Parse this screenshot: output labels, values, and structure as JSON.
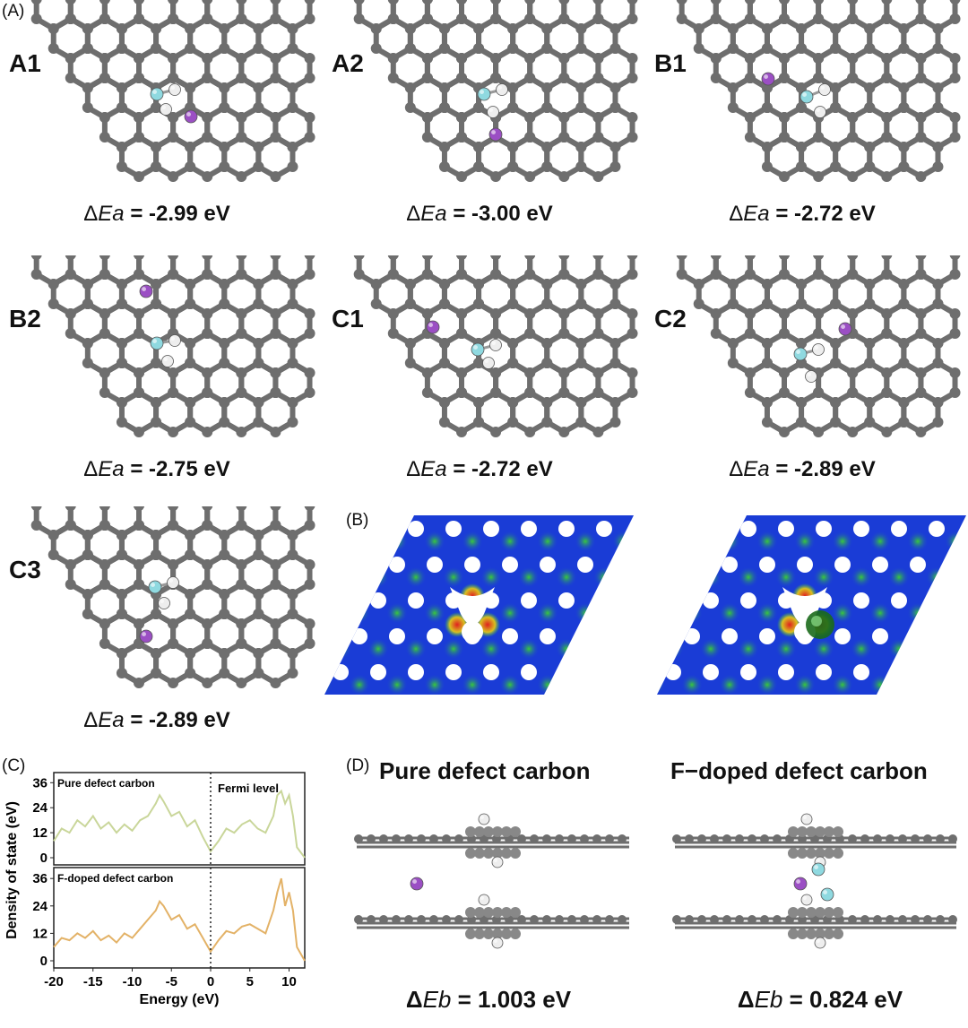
{
  "panel_letters": {
    "a": "(A)",
    "b": "(B)",
    "c": "(C)",
    "d": "(D)"
  },
  "structures": [
    {
      "label": "A1",
      "delta": "Δ",
      "sym": "E",
      "sub": "a",
      "value": " = -2.99 eV"
    },
    {
      "label": "A2",
      "delta": "Δ",
      "sym": "E",
      "sub": "a",
      "value": " = -3.00 eV"
    },
    {
      "label": "B1",
      "delta": "Δ",
      "sym": "E",
      "sub": "a",
      "value": " = -2.72 eV"
    },
    {
      "label": "B2",
      "delta": "Δ",
      "sym": "E",
      "sub": "a",
      "value": " = -2.75 eV"
    },
    {
      "label": "C1",
      "delta": "Δ",
      "sym": "E",
      "sub": "a",
      "value": " = -2.72 eV"
    },
    {
      "label": "C2",
      "delta": "Δ",
      "sym": "E",
      "sub": "a",
      "value": " = -2.89 eV"
    },
    {
      "label": "C3",
      "delta": "Δ",
      "sym": "E",
      "sub": "a",
      "value": " = -2.89 eV"
    }
  ],
  "panel_d": {
    "left_title": "Pure defect carbon",
    "right_title": "F−doped defect carbon",
    "left_energy": {
      "delta": "Δ",
      "sym": "E",
      "sub": "b",
      "value": " = 1.003 eV"
    },
    "right_energy": {
      "delta": "Δ",
      "sym": "E",
      "sub": "b",
      "value": " = 0.824 eV"
    }
  },
  "colors": {
    "carbon": "#6e6e6e",
    "hydrogen": "#eeeeee",
    "fluorine": "#8fd9e0",
    "potassium": "#9b4fc4",
    "dos_pure": "#c9d69a",
    "dos_fdoped": "#e3b267",
    "elf_blue": "#1a3cd6",
    "elf_green": "#39c93a"
  },
  "chart_data": {
    "type": "line",
    "xlabel": "Energy (eV)",
    "ylabel": "Density of state (eV)",
    "xlim": [
      -20,
      12
    ],
    "xticks": [
      -20,
      -15,
      -10,
      -5,
      0,
      5,
      10
    ],
    "yticks": [
      0,
      12,
      24,
      36
    ],
    "fermi_label": "Fermi level",
    "fermi_x": 0,
    "series": [
      {
        "name": "Pure defect carbon",
        "x": [
          -20,
          -19,
          -18,
          -17,
          -16,
          -15,
          -14,
          -13,
          -12,
          -11,
          -10,
          -9,
          -8,
          -7,
          -6.5,
          -6,
          -5,
          -4,
          -3,
          -2,
          -1,
          0,
          1,
          2,
          3,
          4,
          5,
          6,
          7,
          8,
          8.5,
          9,
          9.5,
          10,
          10.5,
          11,
          12
        ],
        "values": [
          8,
          14,
          12,
          18,
          15,
          20,
          14,
          17,
          12,
          16,
          13,
          18,
          20,
          26,
          30,
          27,
          20,
          22,
          15,
          18,
          10,
          3,
          8,
          14,
          12,
          16,
          18,
          14,
          12,
          20,
          30,
          32,
          26,
          30,
          20,
          5,
          0
        ]
      },
      {
        "name": "F-doped defect carbon",
        "x": [
          -20,
          -19,
          -18,
          -17,
          -16,
          -15,
          -14,
          -13,
          -12,
          -11,
          -10,
          -9,
          -8,
          -7,
          -6.5,
          -6,
          -5,
          -4,
          -3,
          -2,
          -1,
          0,
          1,
          2,
          3,
          4,
          5,
          6,
          7,
          8,
          8.5,
          9,
          9.5,
          10,
          10.5,
          11,
          12
        ],
        "values": [
          6,
          10,
          9,
          12,
          10,
          13,
          9,
          11,
          8,
          12,
          10,
          14,
          18,
          22,
          26,
          24,
          18,
          20,
          14,
          16,
          10,
          4,
          9,
          13,
          12,
          15,
          16,
          14,
          12,
          22,
          30,
          36,
          24,
          30,
          22,
          6,
          0
        ]
      }
    ]
  }
}
